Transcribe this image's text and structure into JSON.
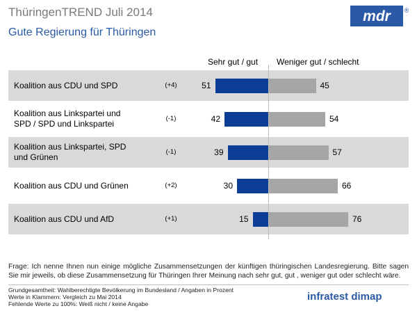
{
  "header": {
    "title": "ThüringenTREND Juli 2014",
    "subtitle": "Gute Regierung für Thüringen",
    "logo_text": "mdr",
    "logo_symbol": "®"
  },
  "colors": {
    "positive": "#0b3c96",
    "negative": "#a6a6a6",
    "row_shade": "#d9d9d9",
    "row_plain": "#ffffff"
  },
  "chart_data": {
    "type": "bar",
    "orientation": "diverging-horizontal",
    "title": "Gute Regierung für Thüringen",
    "column_headers": [
      "Sehr gut / gut",
      "Weniger gut / schlecht"
    ],
    "categories": [
      "Koalition aus CDU und SPD",
      "Koalition aus Linkspartei und SPD / SPD und Linkspartei",
      "Koalition aus Linkspartei, SPD und Grünen",
      "Koalition aus CDU und Grünen",
      "Koalition aus CDU und AfD"
    ],
    "category_lines": [
      [
        "Koalition aus CDU und SPD"
      ],
      [
        "Koalition aus Linkspartei und",
        "SPD / SPD und Linkspartei"
      ],
      [
        "Koalition aus Linkspartei, SPD",
        "und Grünen"
      ],
      [
        "Koalition aus CDU und Grünen"
      ],
      [
        "Koalition aus CDU und AfD"
      ]
    ],
    "changes": [
      "(+4)",
      "(-1)",
      "(-1)",
      "(+2)",
      "(+1)"
    ],
    "series": [
      {
        "name": "Sehr gut / gut",
        "values": [
          51,
          42,
          39,
          30,
          15
        ]
      },
      {
        "name": "Weniger gut / schlecht",
        "values": [
          45,
          54,
          57,
          66,
          76
        ]
      }
    ],
    "unit": "Prozent",
    "xlim": [
      0,
      100
    ]
  },
  "note": "Frage: Ich nenne Ihnen nun einige mögliche Zusammensetzungen der künftigen thüringischen Landesregierung. Bitte sagen Sie mir jeweils, ob diese Zusammensetzung für Thüringen Ihrer Meinung nach sehr gut, gut , weniger gut oder schlecht wäre.",
  "footer": {
    "line1": "Grundgesamtheit: Wahlberechtigte Bevölkerung im Bundesland / Angaben in Prozent",
    "line2": "Werte in Klammern: Vergleich zu Mai 2014",
    "line3": "Fehlende Werte zu 100%: Weiß nicht / keine Angabe",
    "brand": "infratest dimap"
  }
}
